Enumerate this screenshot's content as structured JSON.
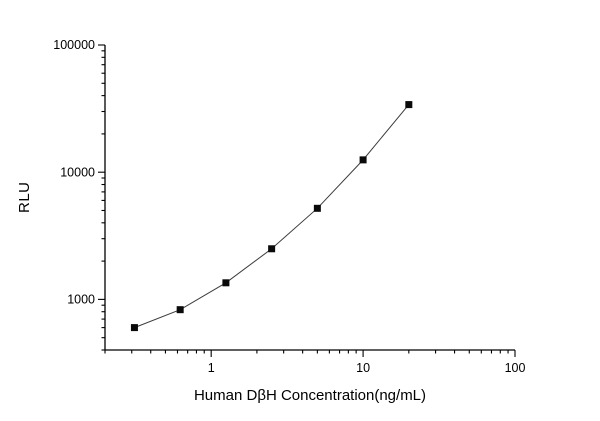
{
  "page": {
    "background_color": "#ffffff"
  },
  "chart_data": {
    "type": "scatter",
    "title": "",
    "xlabel": "Human DβH Concentration(ng/mL)",
    "ylabel": "RLU",
    "xscale": "log",
    "yscale": "log",
    "xlim": [
      0.2,
      100
    ],
    "ylim": [
      400,
      100000
    ],
    "x_tick_labels": [
      "1",
      "10",
      "100"
    ],
    "y_tick_labels": [
      "1000",
      "10000",
      "100000"
    ],
    "x": [
      0.3125,
      0.625,
      1.25,
      2.5,
      5,
      10,
      20
    ],
    "y": [
      600,
      830,
      1350,
      2500,
      5200,
      12500,
      34000
    ],
    "marker": "filled-square",
    "marker_color": "#0a0a0a",
    "line_color": "#3c3c3c",
    "axis_color": "#000000",
    "grid": false,
    "legend": false
  }
}
